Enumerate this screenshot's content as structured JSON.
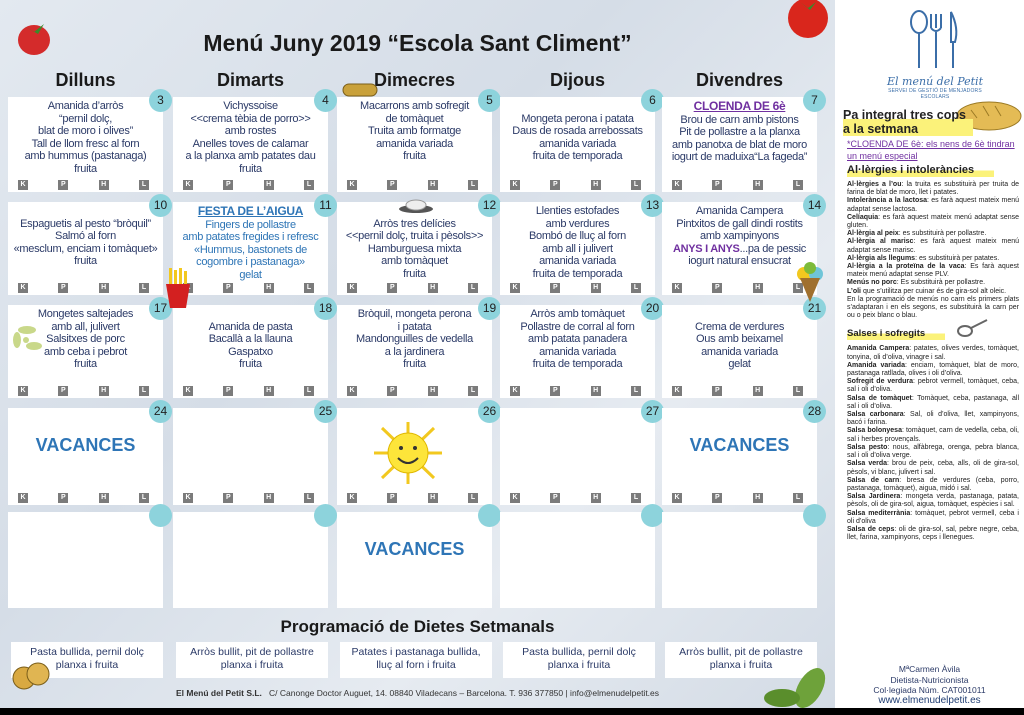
{
  "title": "Menú Juny 2019 “Escola Sant Climent”",
  "days": [
    "Dilluns",
    "Dimarts",
    "Dimecres",
    "Dijous",
    "Divendres"
  ],
  "badge_labels": [
    "K",
    "P",
    "H",
    "L"
  ],
  "colors": {
    "accent": "#2e75b6",
    "special": "#7030a0",
    "day_circle": "#8dd3dc",
    "text": "#2b3a67"
  },
  "weeks": [
    [
      {
        "num": "3",
        "lines": [
          [
            {
              "t": "Amanida d’arròs"
            }
          ],
          [
            {
              "t": "“pernil dolç,"
            }
          ],
          [
            {
              "t": "blat de moro i olives”"
            }
          ],
          [
            {
              "t": "Tall de llom  fresc al forn"
            }
          ],
          [
            {
              "t": "amb hummus (pastanaga)"
            }
          ],
          [
            {
              "t": "fruita"
            }
          ]
        ],
        "badges": true
      },
      {
        "num": "4",
        "lines": [
          [
            {
              "t": "Vichyssoise"
            }
          ],
          [
            {
              "t": "<<crema tèbia de porro>>"
            }
          ],
          [
            {
              "t": "amb rostes"
            }
          ],
          [
            {
              "t": "Anelles toves de calamar"
            }
          ],
          [
            {
              "t": "a la planxa amb patates dau"
            }
          ],
          [
            {
              "t": "fruita"
            }
          ]
        ],
        "badges": true
      },
      {
        "num": "5",
        "lines": [
          [
            {
              "t": "Macarrons amb sofregit"
            }
          ],
          [
            {
              "t": "de tomàquet"
            }
          ],
          [
            {
              "t": "Truita amb formatge"
            }
          ],
          [
            {
              "t": "amanida variada"
            }
          ],
          [
            {
              "t": "fruita"
            }
          ]
        ],
        "badges": true
      },
      {
        "num": "6",
        "lines": [
          [
            {
              "t": ""
            }
          ],
          [
            {
              "t": "Mongeta perona i patata"
            }
          ],
          [
            {
              "t": "Daus de rosada arrebossats"
            }
          ],
          [
            {
              "t": "amanida variada"
            }
          ],
          [
            {
              "t": "fruita de temporada"
            }
          ]
        ],
        "badges": true
      },
      {
        "num": "7",
        "lines": [
          [
            {
              "t": "CLOENDA DE 6è",
              "s": "cloenda"
            }
          ],
          [
            {
              "t": "Brou de carn amb pistons"
            }
          ],
          [
            {
              "t": "Pit de pollastre a la planxa"
            }
          ],
          [
            {
              "t": "amb panotxa de blat de moro"
            }
          ],
          [
            {
              "t": "iogurt de maduixa“La fageda”"
            }
          ]
        ],
        "badges": true
      }
    ],
    [
      {
        "num": "10",
        "lines": [
          [
            {
              "t": ""
            }
          ],
          [
            {
              "t": "Espaguetis al pesto “bròquil”"
            }
          ],
          [
            {
              "t": "Salmó al forn"
            }
          ],
          [
            {
              "t": "«mesclum, enciam i tomàquet»"
            }
          ],
          [
            {
              "t": "fruita"
            }
          ]
        ],
        "badges": true
      },
      {
        "num": "11",
        "lines": [
          [
            {
              "t": "FESTA DE L’AIGUA",
              "s": "festah"
            }
          ],
          [
            {
              "t": "Fingers de pollastre",
              "s": "festa"
            }
          ],
          [
            {
              "t": "amb patates fregides i refresc",
              "s": "festa"
            }
          ],
          [
            {
              "t": "«Hummus, bastonets de",
              "s": "festa"
            }
          ],
          [
            {
              "t": "cogombre i pastanaga»",
              "s": "festa"
            }
          ],
          [
            {
              "t": "gelat",
              "s": "festa"
            }
          ]
        ],
        "badges": true
      },
      {
        "num": "12",
        "lines": [
          [
            {
              "t": ""
            }
          ],
          [
            {
              "t": "Arròs tres delícies"
            }
          ],
          [
            {
              "t": "<<pernil dolç, truita i pèsols>>"
            }
          ],
          [
            {
              "t": "Hamburguesa mixta"
            }
          ],
          [
            {
              "t": "amb tomàquet"
            }
          ],
          [
            {
              "t": "fruita"
            }
          ]
        ],
        "badges": true
      },
      {
        "num": "13",
        "lines": [
          [
            {
              "t": "Llenties estofades"
            }
          ],
          [
            {
              "t": "amb verdures"
            }
          ],
          [
            {
              "t": "Bombó de lluç al forn"
            }
          ],
          [
            {
              "t": "amb all i julivert"
            }
          ],
          [
            {
              "t": "amanida variada"
            }
          ],
          [
            {
              "t": "fruita de temporada"
            }
          ]
        ],
        "badges": true
      },
      {
        "num": "14",
        "lines": [
          [
            {
              "t": "Amanida Campera"
            }
          ],
          [
            {
              "t": "Pintxitos de gall dindi rostits"
            }
          ],
          [
            {
              "t": "amb xampinyons"
            }
          ],
          [
            {
              "t": "ANYS I ANYS",
              "s": "anys"
            },
            {
              "t": "...pa de pessic"
            }
          ],
          [
            {
              "t": "iogurt  natural ensucrat"
            }
          ]
        ],
        "badges": true
      }
    ],
    [
      {
        "num": "17",
        "lines": [
          [
            {
              "t": "Mongetes saltejades"
            }
          ],
          [
            {
              "t": "amb all, julivert"
            }
          ],
          [
            {
              "t": "Salsitxes de porc"
            }
          ],
          [
            {
              "t": "amb ceba i pebrot"
            }
          ],
          [
            {
              "t": "fruita"
            }
          ]
        ],
        "badges": true
      },
      {
        "num": "18",
        "lines": [
          [
            {
              "t": ""
            }
          ],
          [
            {
              "t": "Amanida de pasta"
            }
          ],
          [
            {
              "t": "Bacallà a la llauna"
            }
          ],
          [
            {
              "t": "Gaspatxo"
            }
          ],
          [
            {
              "t": "fruita"
            }
          ]
        ],
        "badges": true
      },
      {
        "num": "19",
        "lines": [
          [
            {
              "t": "Bròquil, mongeta perona"
            }
          ],
          [
            {
              "t": "i patata"
            }
          ],
          [
            {
              "t": "Mandonguilles de vedella"
            }
          ],
          [
            {
              "t": "a la jardinera"
            }
          ],
          [
            {
              "t": "fruita"
            }
          ]
        ],
        "badges": true
      },
      {
        "num": "20",
        "lines": [
          [
            {
              "t": "Arròs amb tomàquet"
            }
          ],
          [
            {
              "t": "Pollastre de corral al forn"
            }
          ],
          [
            {
              "t": "amb patata panadera"
            }
          ],
          [
            {
              "t": "amanida variada"
            }
          ],
          [
            {
              "t": "fruita de temporada"
            }
          ]
        ],
        "badges": true
      },
      {
        "num": "21",
        "lines": [
          [
            {
              "t": ""
            }
          ],
          [
            {
              "t": "Crema de verdures"
            }
          ],
          [
            {
              "t": "Ous amb beixamel"
            }
          ],
          [
            {
              "t": "amanida variada"
            }
          ],
          [
            {
              "t": "gelat"
            }
          ]
        ],
        "badges": true
      }
    ],
    [
      {
        "num": "24",
        "vacances": "VACANCES",
        "badges": true
      },
      {
        "num": "25",
        "badges": true
      },
      {
        "num": "26",
        "badges": true,
        "sun": true
      },
      {
        "num": "27",
        "badges": true
      },
      {
        "num": "28",
        "vacances": "VACANCES",
        "badges": true
      }
    ],
    [
      {
        "num": ""
      },
      {
        "num": ""
      },
      {
        "num": "",
        "vacances": "VACANCES"
      },
      {
        "num": ""
      },
      {
        "num": ""
      }
    ]
  ],
  "programacio": {
    "title": "Programació de Dietes Setmanals",
    "items": [
      [
        "Pasta bullida, pernil dolç",
        "planxa i fruita"
      ],
      [
        "Arròs bullit, pit de pollastre",
        "planxa i fruita"
      ],
      [
        "Patates i pastanaga bullida,",
        "lluç al forn i fruita"
      ],
      [
        "Pasta bullida, pernil dolç",
        "planxa i fruita"
      ],
      [
        "Arròs bullit, pit de pollastre",
        "planxa i fruita"
      ]
    ]
  },
  "footer": {
    "company": "El Menú del Petit S.L.",
    "address": "C/ Canonge Doctor Auguet, 14. 08840 Viladecans – Barcelona. T. 936 377850 | info@elmenudelpetit.es"
  },
  "sidebar": {
    "logo": {
      "name": "El menú del Petit",
      "subtitle": "SERVEI DE GESTIÓ DE MENJADORS ESCOLARS"
    },
    "pa_integral": "Pa integral  tres cops a la setmana",
    "cloenda_note": "*CLOENDA DE 6è: els nens de 6è tindran un menú especial",
    "allergies_title": "Al·lèrgies i intoleràncies",
    "allergies": [
      {
        "b": "Al·lèrgies a l’ou",
        "t": ": la truita es substituirà per truita de farina de blat de moro, llet i patates."
      },
      {
        "b": "Intolerància a la lactosa",
        "t": ": es farà aquest mateix menú adaptat sense lactosa."
      },
      {
        "b": "Celíaquia",
        "t": ": es farà aquest mateix menú adaptat sense gluten."
      },
      {
        "b": "Al·lèrgia al peix",
        "t": ": es substituirà per pollastre."
      },
      {
        "b": "Al·lèrgia al marisc",
        "t": ": es farà aquest mateix menú adaptat sense marisc."
      },
      {
        "b": "Al·lèrgia als llegums",
        "t": ": es substituirà per patates."
      },
      {
        "b": " Al·lèrgia a la proteïna de la vaca",
        "t": ": Es farà aquest mateix menú adaptat sense PLV."
      },
      {
        "b": "Menús no porc",
        "t": ": Es substituirà per pollastre."
      },
      {
        "b": "L’oli",
        "t": " que s’utilitza per cuinar és de gira-sol alt oleic."
      },
      {
        "b": "",
        "t": "En la programació de menús no carn els primers plats s’adaptaran i en els segons, es substituirà la carn per ou o  peix blanc o blau."
      }
    ],
    "salses_title": "Salses i sofregits",
    "salses": [
      {
        "b": "Amanida Campera",
        "t": ": patates, olives verdes, tomàquet, tonyina, oli d’oliva, vinagre i sal."
      },
      {
        "b": "Amanida variada",
        "t": ": enciam, tomàquet, blat de moro, pastanaga ratllada, olives i oli d’oliva."
      },
      {
        "b": "Sofregit de verdura",
        "t": ": pebrot vermell, tomàquet, ceba, sal i oli d’oliva."
      },
      {
        "b": "Salsa de tomàquet",
        "t": ": Tomàquet, ceba, pastanaga, all sal i oli d’oliva."
      },
      {
        "b": "Salsa carbonara",
        "t": ": Sal, oli d’oliva, llet, xampinyons, bacó i farina."
      },
      {
        "b": "Salsa bolonyesa",
        "t": ": tomàquet, carn de vedella, ceba, oli, sal i herbes provençals."
      },
      {
        "b": "Salsa pesto",
        "t": ": nous, alfàbrega, orenga, pebra blanca, sal i oli d’oliva verge."
      },
      {
        "b": "Salsa verda",
        "t": ": brou de peix, ceba, alls, oli de gira-sol, pèsols, vi blanc, julivert i sal."
      },
      {
        "b": "Salsa de carn",
        "t": ": bresa de verdures (ceba, porro, pastanaga, tomàquet), aigua, midó i sal."
      },
      {
        "b": "Salsa Jardinera",
        "t": ": mongeta verda, pastanaga, patata, pèsols, oli de gira-sol, aigua, tomàquet, espècies i sal."
      },
      {
        "b": "Salsa mediterrània",
        "t": ": tomàquet, pebrot vermell, ceba i oli d’oliva"
      },
      {
        "b": "Salsa de ceps",
        "t": ": oli de gira-sol, sal, pebre negre, ceba, llet, farina, xampinyons, ceps i llenegues."
      }
    ],
    "signature": {
      "name": "MªCarmen Àvila",
      "role": "Dietista-Nutricionista",
      "license": "Col·legiada Núm. CAT001011",
      "web": "www.elmenudelpetit.es"
    }
  }
}
